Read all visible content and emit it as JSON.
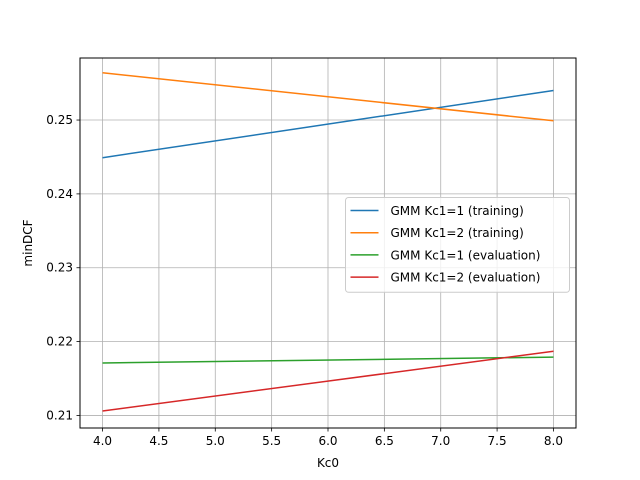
{
  "chart_data": {
    "type": "line",
    "xlabel": "Kc0",
    "ylabel": "minDCF",
    "xlim": [
      3.8,
      8.2
    ],
    "ylim": [
      0.2083,
      0.2584
    ],
    "xticks": [
      "4.0",
      "4.5",
      "5.0",
      "5.5",
      "6.0",
      "6.5",
      "7.0",
      "7.5",
      "8.0"
    ],
    "yticks": [
      "0.21",
      "0.22",
      "0.23",
      "0.24",
      "0.25"
    ],
    "grid": true,
    "legend_position": "center-right",
    "series": [
      {
        "name": "GMM Kc1=1 (training)",
        "color": "#1f77b4",
        "x": [
          4,
          8
        ],
        "y": [
          0.2449,
          0.254
        ]
      },
      {
        "name": "GMM Kc1=2 (training)",
        "color": "#ff7f0e",
        "x": [
          4,
          8
        ],
        "y": [
          0.2564,
          0.2499
        ]
      },
      {
        "name": "GMM Kc1=1 (evaluation)",
        "color": "#2ca02c",
        "x": [
          4,
          8
        ],
        "y": [
          0.2171,
          0.2179
        ]
      },
      {
        "name": "GMM Kc1=2 (evaluation)",
        "color": "#d62728",
        "x": [
          4,
          8
        ],
        "y": [
          0.2106,
          0.2187
        ]
      }
    ]
  }
}
